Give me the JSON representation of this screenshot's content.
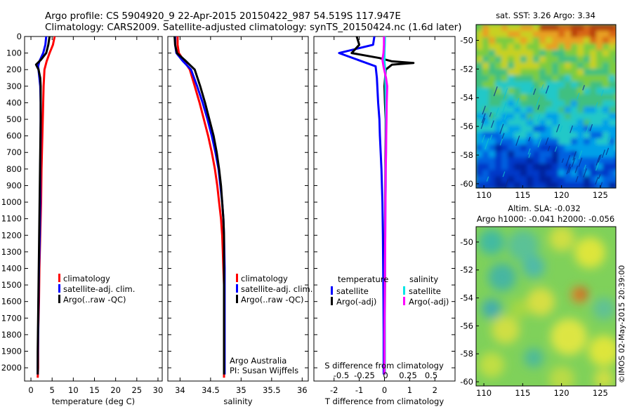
{
  "title_line1": "Argo profile: CS 5904920_9 22-Apr-2015 20150422_987 54.519S 117.947E",
  "title_line2": "Climatology: CARS2009. Satellite-adjusted climatology: synTS_20150424.nc (1.6d later)",
  "chart_data": [
    {
      "type": "line",
      "xlabel": "temperature (deg C)",
      "ylim": [
        2080,
        0
      ],
      "xlim": [
        -1.5,
        31
      ],
      "xticks": [
        0,
        5,
        10,
        15,
        20,
        25,
        30
      ],
      "yticks": [
        0,
        100,
        200,
        300,
        400,
        500,
        600,
        700,
        800,
        900,
        1000,
        1100,
        1200,
        1300,
        1400,
        1500,
        1600,
        1700,
        1800,
        1900,
        2000
      ],
      "legend": [
        "climatology",
        "satellite-adj. clim.",
        "Argo(..raw -QC)"
      ],
      "series": [
        {
          "name": "climatology",
          "color": "#ff0000",
          "x": [
            5.6,
            5.2,
            4.4,
            3.7,
            3.2,
            3.0,
            2.9,
            2.8,
            2.7,
            2.6,
            2.5,
            2.4,
            2.2,
            2.0,
            1.9,
            1.8,
            1.7,
            1.7,
            1.6
          ],
          "y": [
            0,
            50,
            100,
            150,
            200,
            300,
            400,
            500,
            600,
            700,
            800,
            1000,
            1200,
            1400,
            1600,
            1700,
            1800,
            2000,
            2060
          ]
        },
        {
          "name": "satellite-adj. clim.",
          "color": "#0000ff",
          "x": [
            3.6,
            3.4,
            2.9,
            2.0,
            1.7,
            2.0,
            2.2,
            2.3,
            2.3,
            2.3,
            2.2,
            2.2,
            2.1,
            1.9,
            1.8,
            1.7,
            1.6,
            1.6
          ],
          "y": [
            0,
            50,
            100,
            150,
            180,
            250,
            300,
            400,
            500,
            600,
            800,
            1000,
            1200,
            1400,
            1600,
            1800,
            2000,
            2040
          ]
        },
        {
          "name": "Argo(..raw -QC)",
          "color": "#000000",
          "x": [
            4.4,
            4.1,
            3.6,
            2.4,
            1.2,
            1.8,
            2.2,
            2.3,
            2.3,
            2.3,
            2.2,
            2.1,
            2.0,
            1.9,
            1.8,
            1.7,
            1.6,
            1.6
          ],
          "y": [
            0,
            50,
            100,
            140,
            170,
            200,
            250,
            300,
            400,
            500,
            700,
            900,
            1100,
            1300,
            1500,
            1700,
            1900,
            2040
          ]
        }
      ]
    },
    {
      "type": "line",
      "xlabel": "salinity",
      "ylim": [
        2080,
        0
      ],
      "xlim": [
        33.8,
        36.1
      ],
      "xticks": [
        34,
        34.5,
        35,
        35.5,
        36
      ],
      "legend": [
        "climatology",
        "satellite-adj. clim.",
        "Argo(..raw -QC)"
      ],
      "series": [
        {
          "name": "climatology",
          "color": "#ff0000",
          "x": [
            33.96,
            33.96,
            33.98,
            34.07,
            34.16,
            34.24,
            34.32,
            34.39,
            34.46,
            34.52,
            34.57,
            34.61,
            34.64,
            34.67,
            34.69,
            34.7,
            34.71,
            34.72,
            34.72,
            34.72
          ],
          "y": [
            0,
            50,
            100,
            150,
            200,
            300,
            400,
            500,
            600,
            700,
            800,
            900,
            1000,
            1100,
            1200,
            1300,
            1400,
            1500,
            1600,
            2060
          ]
        },
        {
          "name": "satellite-adj. clim.",
          "color": "#0000ff",
          "x": [
            33.92,
            33.92,
            33.94,
            34.05,
            34.18,
            34.28,
            34.37,
            34.45,
            34.52,
            34.58,
            34.63,
            34.66,
            34.69,
            34.71,
            34.72,
            34.73,
            34.73,
            34.73
          ],
          "y": [
            0,
            50,
            100,
            150,
            200,
            300,
            400,
            500,
            600,
            700,
            800,
            900,
            1000,
            1100,
            1200,
            1400,
            1800,
            2040
          ]
        },
        {
          "name": "Argo(..raw -QC)",
          "color": "#000000",
          "x": [
            33.91,
            33.92,
            33.95,
            34.1,
            34.24,
            34.33,
            34.41,
            34.48,
            34.55,
            34.6,
            34.64,
            34.67,
            34.69,
            34.71,
            34.72,
            34.72,
            34.72
          ],
          "y": [
            0,
            50,
            100,
            150,
            200,
            300,
            400,
            500,
            600,
            700,
            800,
            900,
            1000,
            1100,
            1200,
            1400,
            2040
          ]
        }
      ],
      "annotation": [
        "Argo Australia",
        "PI: Susan Wijffels"
      ]
    },
    {
      "type": "line",
      "xlabel": "T difference from climatology",
      "xlabel_top": "S difference from climatology",
      "ylim": [
        2080,
        0
      ],
      "xlim": [
        -2.8,
        2.8
      ],
      "xticks": [
        -2,
        -1,
        0,
        1,
        2
      ],
      "xticks_top": [
        -0.5,
        -0.25,
        0,
        0.25,
        0.5
      ],
      "legend_headers": [
        "temperature",
        "salinity"
      ],
      "legend": [
        "satellite",
        "Argo(-adj)",
        "satellite",
        "Argo(-adj)"
      ],
      "series": [
        {
          "name": "satellite",
          "group": "temperature",
          "color": "#0000ff",
          "x": [
            -0.4,
            -0.45,
            -1.8,
            -0.35,
            -0.3,
            -0.25,
            -0.2,
            -0.18,
            -0.15,
            -0.12,
            -0.1,
            -0.08,
            -0.06,
            -0.05,
            -0.04,
            -0.03,
            -0.03
          ],
          "y": [
            0,
            50,
            100,
            180,
            250,
            400,
            500,
            600,
            700,
            800,
            900,
            1000,
            1200,
            1400,
            1600,
            1800,
            2040
          ]
        },
        {
          "name": "Argo(-adj)",
          "group": "temperature",
          "color": "#000000",
          "x": [
            -1.1,
            -1.0,
            -1.3,
            -0.2,
            0.3,
            1.15,
            0.3,
            0.05,
            0.0,
            0.02,
            0.05,
            0.05,
            0.04,
            0.03,
            0.02,
            0.02,
            0.01,
            0.01
          ],
          "y": [
            0,
            50,
            100,
            130,
            150,
            160,
            170,
            200,
            300,
            400,
            500,
            600,
            800,
            1000,
            1200,
            1500,
            1800,
            2040
          ]
        },
        {
          "name": "satellite",
          "group": "salinity",
          "color": "#00e5e5",
          "x": [
            0.02,
            0.01,
            0.0,
            0.0,
            0.03,
            0.04,
            0.05,
            0.06,
            0.06,
            0.06,
            0.05,
            0.05,
            0.04,
            0.03,
            0.02,
            0.01,
            0.01
          ],
          "y": [
            0,
            50,
            100,
            150,
            200,
            300,
            400,
            500,
            600,
            700,
            800,
            900,
            1000,
            1200,
            1400,
            1800,
            2040
          ]
        },
        {
          "name": "Argo(-adj)",
          "group": "salinity",
          "color": "#ff00ff",
          "x": [
            -0.02,
            -0.02,
            -0.04,
            -0.08,
            -0.04,
            0.06,
            0.11,
            0.09,
            0.08,
            0.07,
            0.06,
            0.05,
            0.04,
            0.03,
            0.02,
            0.01,
            0.0,
            0.0
          ],
          "y": [
            0,
            50,
            100,
            140,
            180,
            250,
            300,
            400,
            500,
            600,
            700,
            800,
            1000,
            1200,
            1400,
            1600,
            1800,
            2040
          ]
        }
      ]
    },
    {
      "type": "heatmap",
      "title": "sat. SST: 3.26 Argo: 3.34",
      "xlim": [
        109,
        127
      ],
      "ylim": [
        -60.3,
        -48.9
      ],
      "xticks": [
        110,
        115,
        120,
        125
      ],
      "yticks": [
        -50,
        -52,
        -54,
        -56,
        -58,
        -60
      ]
    },
    {
      "type": "heatmap",
      "title_lines": [
        "Altim. SLA: -0.032",
        "Argo h1000: -0.041 h2000: -0.056"
      ],
      "xlim": [
        109,
        127
      ],
      "ylim": [
        -60.3,
        -48.9
      ],
      "xticks": [
        110,
        115,
        120,
        125
      ],
      "yticks": [
        -50,
        -52,
        -54,
        -56,
        -58,
        -60
      ]
    }
  ],
  "watermark": "©IMOS 02-May-2015 20:39:00"
}
